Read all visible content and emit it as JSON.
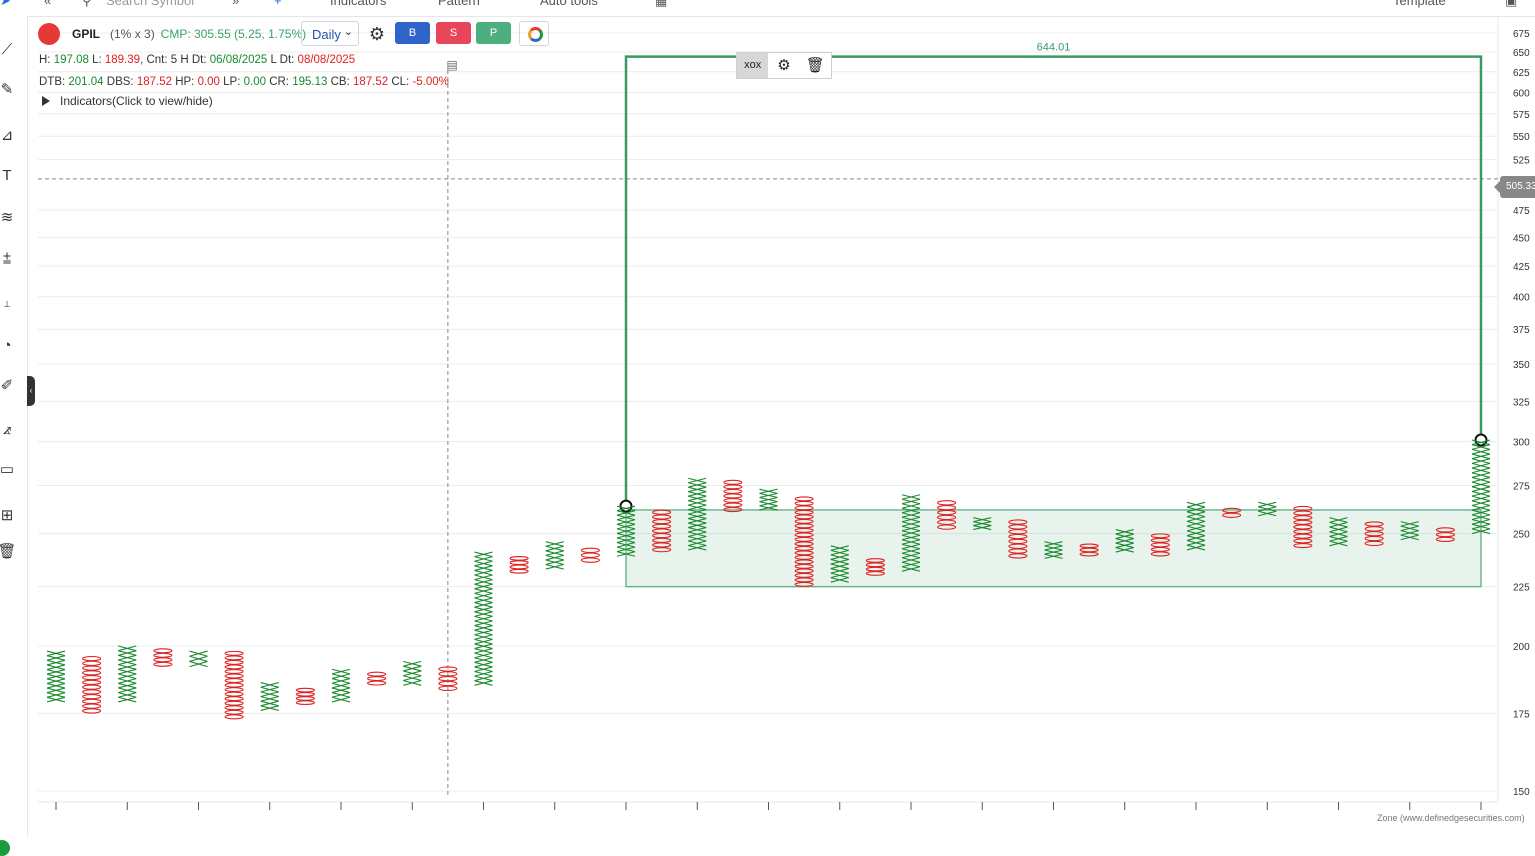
{
  "topbar": {
    "search_placeholder": "Search Symbol",
    "indicators_label": "Indicators",
    "pattern_label": "Pattern",
    "plus_label": "+",
    "auto_tools_label": "Auto tools",
    "template_label": "Template"
  },
  "symbol": {
    "name": "GPIL",
    "box_size": "(1% x 3)",
    "cmp": "CMP: 305.55 (5.25, 1.75%)",
    "timeframe": "Daily"
  },
  "buttons": {
    "buy": "B",
    "sell": "S",
    "p": "P"
  },
  "info_line1": [
    {
      "t": "H: ",
      "c": ""
    },
    {
      "t": "197.08",
      "c": "g"
    },
    {
      "t": " L: ",
      "c": ""
    },
    {
      "t": "189.39",
      "c": "r"
    },
    {
      "t": ", Cnt: 5 H Dt: ",
      "c": ""
    },
    {
      "t": "06/08/2025",
      "c": "g"
    },
    {
      "t": " L Dt: ",
      "c": ""
    },
    {
      "t": "08/08/2025",
      "c": "r"
    }
  ],
  "info_line2": [
    {
      "t": "DTB: ",
      "c": ""
    },
    {
      "t": "201.04",
      "c": "g"
    },
    {
      "t": " DBS: ",
      "c": ""
    },
    {
      "t": "187.52",
      "c": "r"
    },
    {
      "t": " HP: ",
      "c": ""
    },
    {
      "t": "0.00",
      "c": "r"
    },
    {
      "t": " LP: ",
      "c": ""
    },
    {
      "t": "0.00",
      "c": "g"
    },
    {
      "t": " CR: ",
      "c": ""
    },
    {
      "t": "195.13",
      "c": "g"
    },
    {
      "t": " CB: ",
      "c": ""
    },
    {
      "t": "187.52",
      "c": "r"
    },
    {
      "t": " CL: ",
      "c": ""
    },
    {
      "t": "-5.00%",
      "c": "r"
    }
  ],
  "indicators_toggle": "Indicators(Click to view/hide)",
  "crosshair_price": "505.33",
  "measure_label": "644.01",
  "watermark": "Zone (www.definedgesecurities.com)",
  "colors": {
    "up": "#1a8a2e",
    "down": "#e02020",
    "zone": "#3a9a66"
  },
  "chart_data": {
    "type": "point-and-figure",
    "y_ticks": [
      675,
      650,
      625,
      600,
      575,
      550,
      525,
      475,
      450,
      425,
      400,
      375,
      350,
      325,
      300,
      275,
      250,
      225,
      200,
      175,
      150
    ],
    "ylim": [
      150,
      675
    ],
    "zone": {
      "low": 225,
      "high": 262,
      "measure_top": 644.01
    },
    "columns": [
      {
        "type": "X",
        "low": 179,
        "high": 198
      },
      {
        "type": "O",
        "low": 175,
        "high": 196
      },
      {
        "type": "X",
        "low": 179,
        "high": 200
      },
      {
        "type": "O",
        "low": 192,
        "high": 199
      },
      {
        "type": "X",
        "low": 192,
        "high": 198
      },
      {
        "type": "O",
        "low": 173,
        "high": 198
      },
      {
        "type": "X",
        "low": 176,
        "high": 186
      },
      {
        "type": "O",
        "low": 178,
        "high": 184
      },
      {
        "type": "X",
        "low": 179,
        "high": 191
      },
      {
        "type": "O",
        "low": 185,
        "high": 190
      },
      {
        "type": "X",
        "low": 185,
        "high": 194
      },
      {
        "type": "O",
        "low": 183,
        "high": 192
      },
      {
        "type": "X",
        "low": 185,
        "high": 241
      },
      {
        "type": "O",
        "low": 231,
        "high": 239
      },
      {
        "type": "X",
        "low": 233,
        "high": 246
      },
      {
        "type": "O",
        "low": 236,
        "high": 243
      },
      {
        "type": "X",
        "low": 239,
        "high": 264
      },
      {
        "type": "O",
        "low": 241,
        "high": 262
      },
      {
        "type": "X",
        "low": 242,
        "high": 279
      },
      {
        "type": "O",
        "low": 261,
        "high": 278
      },
      {
        "type": "X",
        "low": 262,
        "high": 273
      },
      {
        "type": "O",
        "low": 225,
        "high": 269
      },
      {
        "type": "X",
        "low": 227,
        "high": 244
      },
      {
        "type": "O",
        "low": 230,
        "high": 238
      },
      {
        "type": "X",
        "low": 232,
        "high": 270
      },
      {
        "type": "O",
        "low": 252,
        "high": 267
      },
      {
        "type": "X",
        "low": 252,
        "high": 258
      },
      {
        "type": "O",
        "low": 238,
        "high": 257
      },
      {
        "type": "X",
        "low": 238,
        "high": 246
      },
      {
        "type": "O",
        "low": 239,
        "high": 245
      },
      {
        "type": "X",
        "low": 241,
        "high": 252
      },
      {
        "type": "O",
        "low": 239,
        "high": 250
      },
      {
        "type": "X",
        "low": 242,
        "high": 266
      },
      {
        "type": "O",
        "low": 258,
        "high": 263
      },
      {
        "type": "X",
        "low": 259,
        "high": 266
      },
      {
        "type": "O",
        "low": 243,
        "high": 264
      },
      {
        "type": "X",
        "low": 244,
        "high": 258
      },
      {
        "type": "O",
        "low": 244,
        "high": 256
      },
      {
        "type": "X",
        "low": 247,
        "high": 256
      },
      {
        "type": "O",
        "low": 246,
        "high": 253
      },
      {
        "type": "X",
        "low": 250,
        "high": 301
      }
    ]
  }
}
